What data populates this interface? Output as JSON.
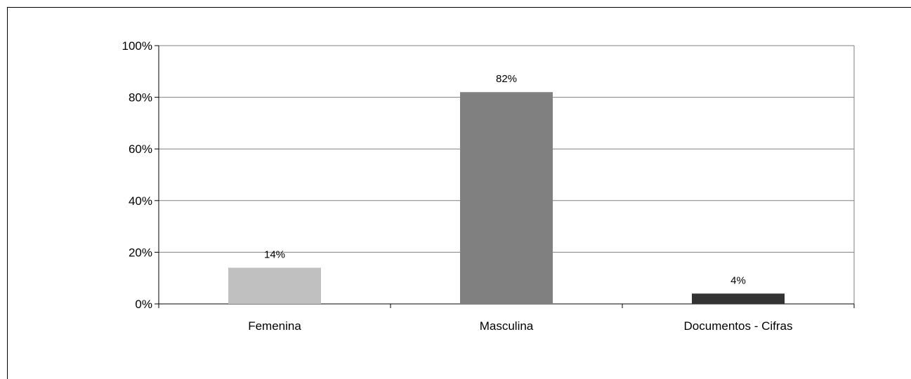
{
  "chart_data": {
    "type": "bar",
    "categories": [
      "Femenina",
      "Masculina",
      "Documentos - Cifras"
    ],
    "values": [
      14,
      82,
      4
    ],
    "data_labels": [
      "14%",
      "82%",
      "4%"
    ],
    "colors": [
      "#c0c0c0",
      "#808080",
      "#333333"
    ],
    "ylim": [
      0,
      100
    ],
    "y_ticks": [
      0,
      20,
      40,
      60,
      80,
      100
    ],
    "y_tick_labels": [
      "0%",
      "20%",
      "40%",
      "60%",
      "80%",
      "100%"
    ],
    "grid": true,
    "legend": "none"
  }
}
